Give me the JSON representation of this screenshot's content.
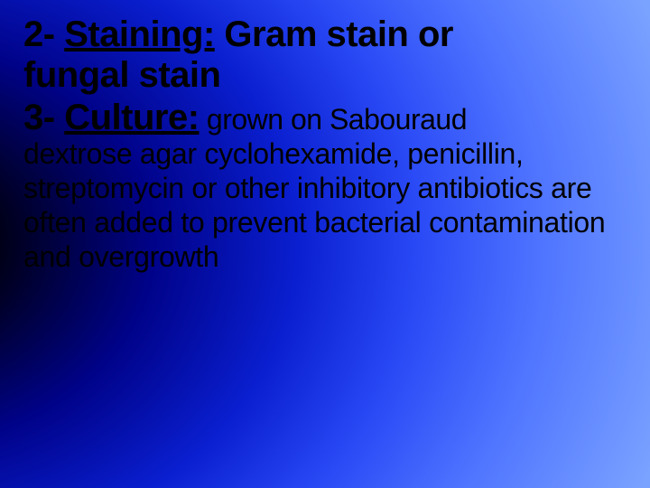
{
  "colors": {
    "text": "#000000",
    "gradient_stops": [
      "#000000",
      "#000288",
      "#1a3ae8",
      "#4f74ff",
      "#7aa2ff"
    ]
  },
  "typography": {
    "heading_fontsize_pt": 30,
    "body_fontsize_pt": 24,
    "font_family": "Arial"
  },
  "slide": {
    "item2_prefix": "2- ",
    "item2_label": "Staining:",
    "item2_rest_line1": " Gram stain or",
    "item2_rest_line2": "fungal stain",
    "item3_prefix": "3- ",
    "item3_label": "Culture:",
    "item3_inline": " grown on Sabouraud",
    "body": "dextrose agar cyclohexamide, penicillin, streptomycin or other inhibitory antibiotics are often added to prevent bacterial contamination and overgrowth"
  }
}
